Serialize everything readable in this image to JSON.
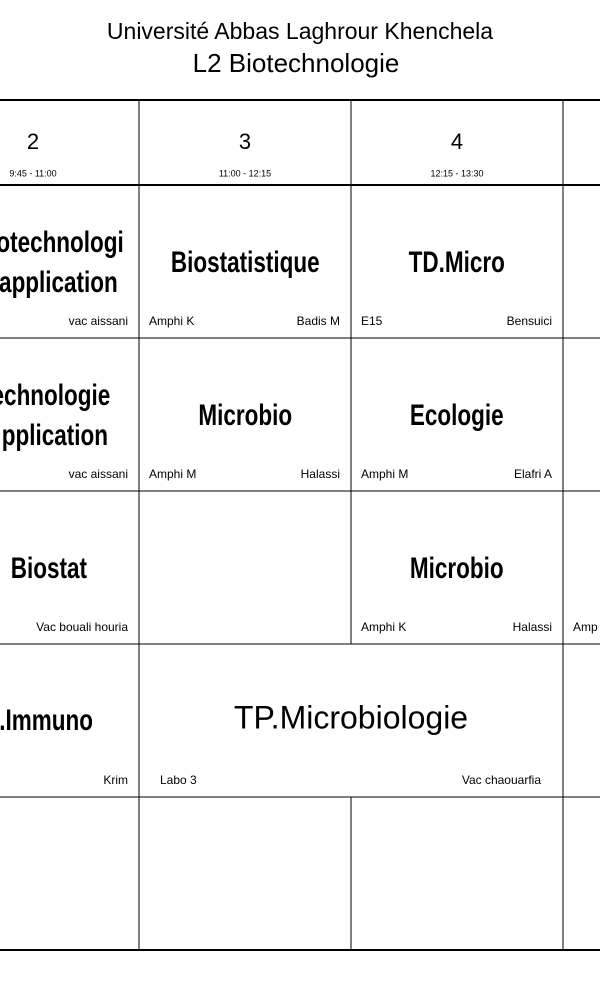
{
  "header": {
    "university": "Université Abbas Laghrour Khenchela",
    "class": "L2 Biotechnologie"
  },
  "columns": [
    {
      "number": "2",
      "time": "9:45 - 11:00"
    },
    {
      "number": "3",
      "time": "11:00 - 12:15"
    },
    {
      "number": "4",
      "time": "12:15 - 13:30"
    }
  ],
  "rows": [
    {
      "col2": {
        "title": [
          "otechnologi",
          "application"
        ],
        "teacher": "vac aissani"
      },
      "col3": {
        "title": "Biostatistique",
        "room": "Amphi K",
        "teacher": "Badis M"
      },
      "col4": {
        "title": "TD.Micro",
        "room": "E15",
        "teacher": "Bensuici"
      }
    },
    {
      "col2": {
        "title": [
          "echnologie",
          "pplication"
        ],
        "teacher": "vac aissani"
      },
      "col3": {
        "title": "Microbio",
        "room": "Amphi M",
        "teacher": "Halassi"
      },
      "col4": {
        "title": "Ecologie",
        "room": "Amphi M",
        "teacher": "Elafri A"
      }
    },
    {
      "col2": {
        "title": "Biostat",
        "teacher": "Vac bouali houria"
      },
      "col4": {
        "title": "Microbio",
        "room": "Amphi K",
        "teacher": "Halassi"
      },
      "col5": {
        "room": "Amp"
      }
    },
    {
      "col2": {
        "title": ".Immuno",
        "teacher": "Krim"
      },
      "col34": {
        "title": "TP.Microbiologie",
        "room": "Labo 3",
        "teacher": "Vac chaouarfia"
      }
    }
  ]
}
